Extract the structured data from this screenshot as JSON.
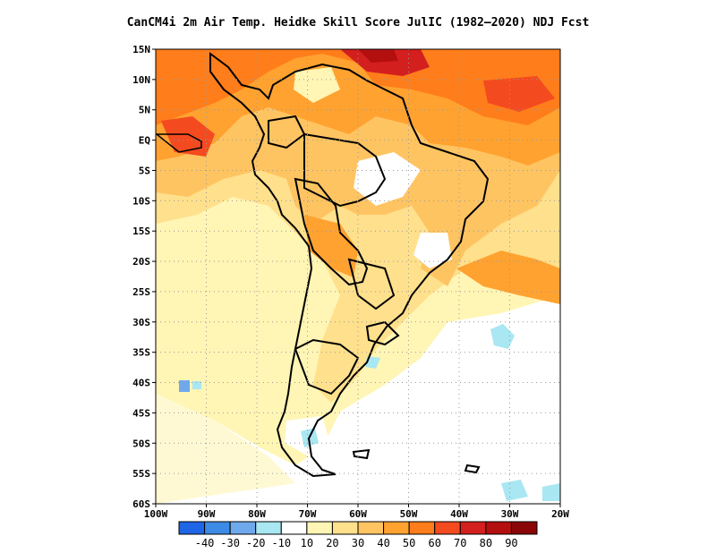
{
  "title": "CanCM4i  2m Air Temp. Heidke Skill Score JulIC (1982–2020) NDJ Fcst",
  "lat_labels": [
    "15N",
    "10N",
    "5N",
    "EQ",
    "5S",
    "10S",
    "15S",
    "20S",
    "25S",
    "30S",
    "35S",
    "40S",
    "45S",
    "50S",
    "55S",
    "60S"
  ],
  "lon_labels": [
    "100W",
    "90W",
    "80W",
    "70W",
    "60W",
    "50W",
    "40W",
    "30W",
    "20W"
  ],
  "colorbar": {
    "labels": [
      "-40",
      "-30",
      "-20",
      "-10",
      "10",
      "20",
      "30",
      "40",
      "50",
      "60",
      "70",
      "80",
      "90"
    ],
    "colors": [
      "#1f66e6",
      "#3c8be6",
      "#6fa9ec",
      "#a9e7f2",
      "#ffffff",
      "#fff5b5",
      "#ffe08c",
      "#ffc462",
      "#ffa230",
      "#ff7d1a",
      "#f44a1f",
      "#d41f1f",
      "#b40f0f",
      "#8a0606"
    ]
  },
  "map": {
    "region": "South America",
    "lon_range": [
      -100,
      -20
    ],
    "lat_range": [
      -60,
      15
    ],
    "grid": "dotted"
  }
}
